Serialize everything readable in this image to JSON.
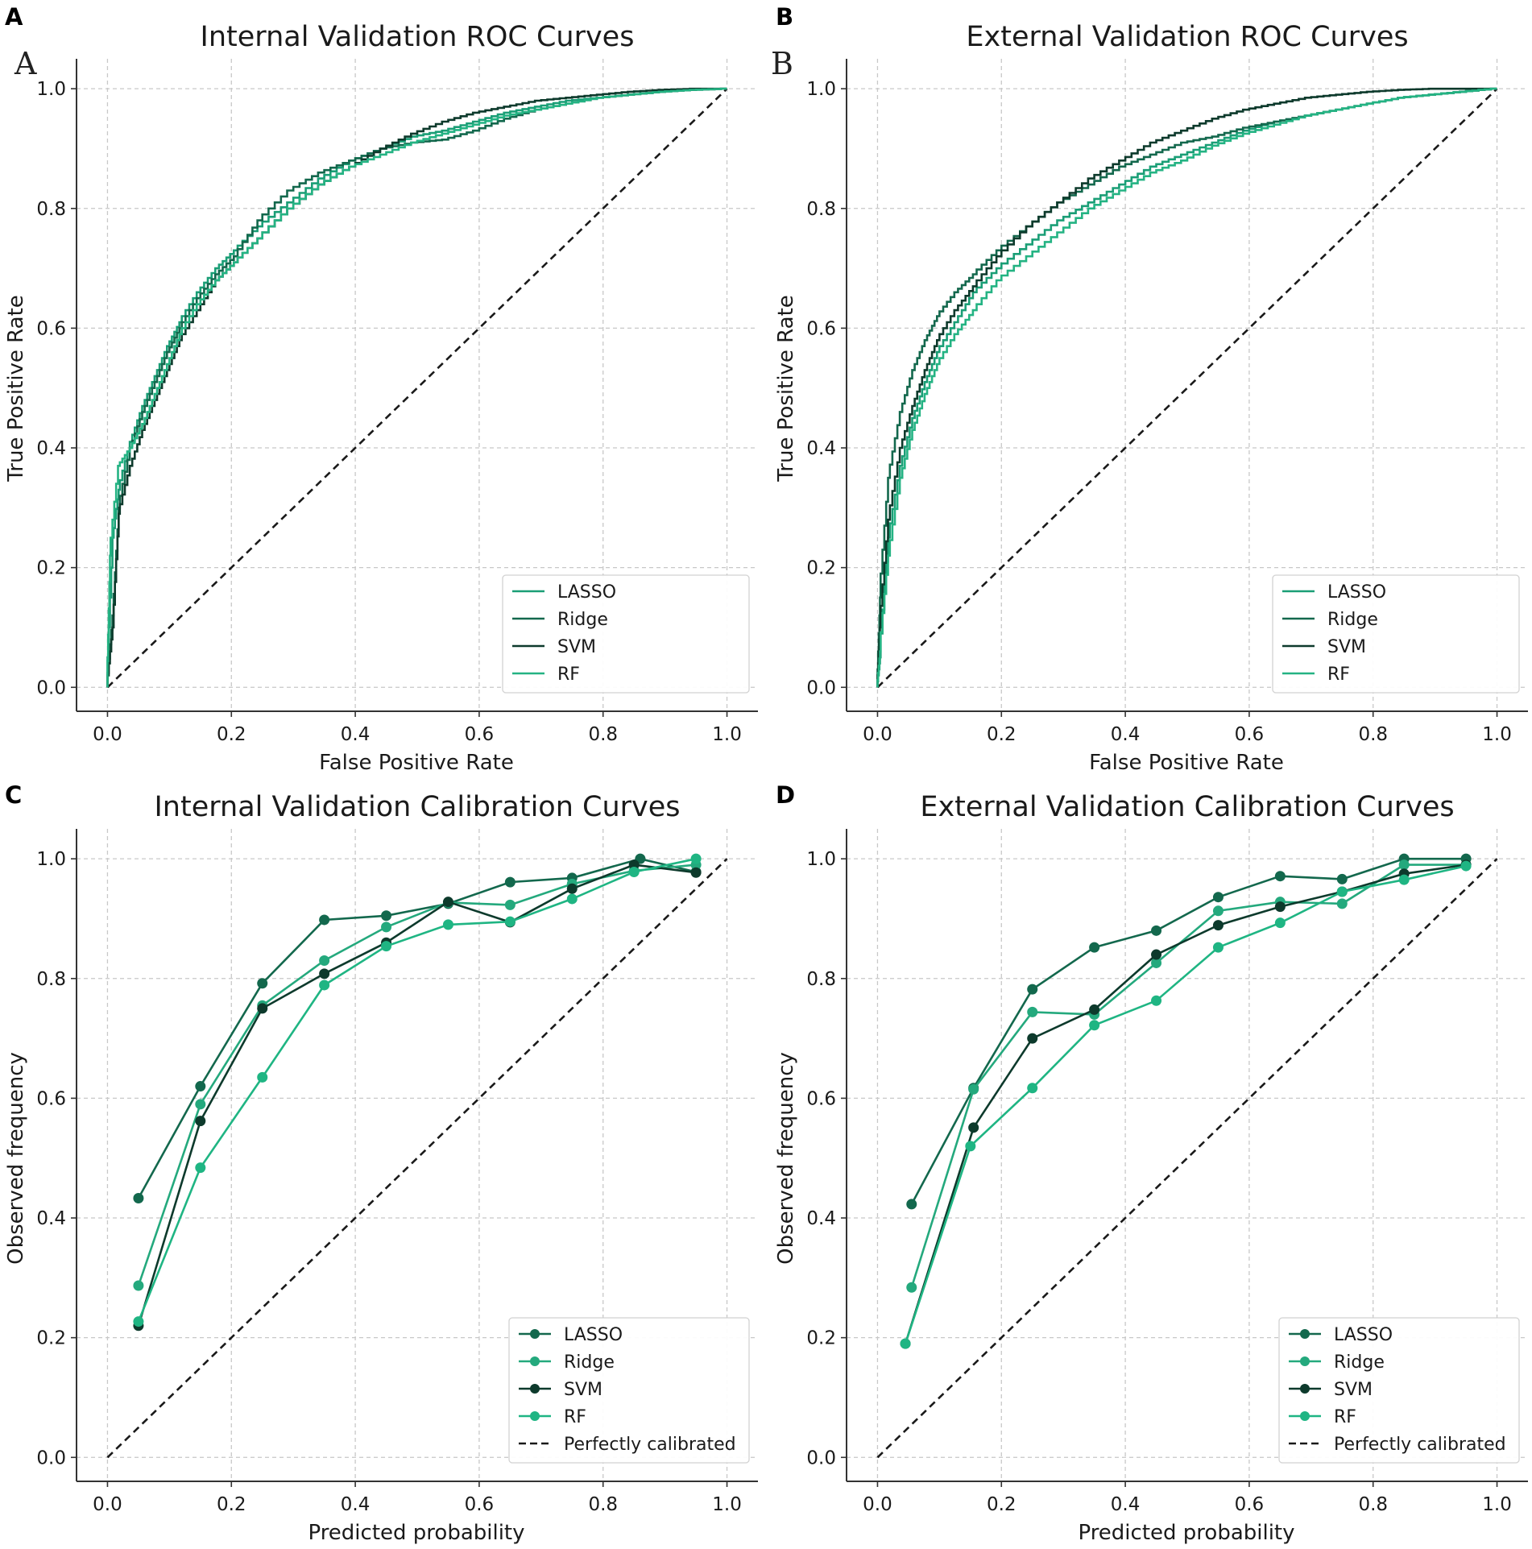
{
  "colors": {
    "LASSO": "#1a9e76",
    "Ridge": "#13684d",
    "SVM": "#0d3a2c",
    "RF": "#24b383",
    "cal_LASSO": "#13684d",
    "cal_Ridge": "#24a97d",
    "cal_SVM": "#0d3a2c",
    "cal_RF": "#1fb583",
    "diagonal": "#1a1a1a"
  },
  "chart_data": [
    {
      "id": "A",
      "panel_label": "A",
      "inset_label": "A",
      "type": "line",
      "kind": "roc",
      "title": "Internal Validation ROC Curves",
      "xlabel": "False Positive Rate",
      "ylabel": "True Positive Rate",
      "xlim": [
        -0.05,
        1.05
      ],
      "ylim": [
        -0.04,
        1.05
      ],
      "xticks": [
        0.0,
        0.2,
        0.4,
        0.6,
        0.8,
        1.0
      ],
      "yticks": [
        0.0,
        0.2,
        0.4,
        0.6,
        0.8,
        1.0
      ],
      "tick_labels": [
        "0.0",
        "0.2",
        "0.4",
        "0.6",
        "0.8",
        "1.0"
      ],
      "grid": true,
      "legend_position": "lower-right",
      "series": [
        {
          "name": "LASSO",
          "color_key": "LASSO",
          "x": [
            0,
            0.01,
            0.02,
            0.04,
            0.06,
            0.08,
            0.1,
            0.12,
            0.15,
            0.18,
            0.21,
            0.25,
            0.3,
            0.35,
            0.4,
            0.45,
            0.5,
            0.55,
            0.6,
            0.65,
            0.7,
            0.75,
            0.8,
            0.85,
            0.9,
            0.95,
            1.0
          ],
          "y": [
            0,
            0.25,
            0.33,
            0.41,
            0.47,
            0.52,
            0.57,
            0.61,
            0.66,
            0.7,
            0.73,
            0.77,
            0.81,
            0.85,
            0.88,
            0.9,
            0.92,
            0.93,
            0.945,
            0.96,
            0.97,
            0.98,
            0.985,
            0.99,
            0.995,
            0.998,
            1.0
          ]
        },
        {
          "name": "Ridge",
          "color_key": "Ridge",
          "x": [
            0,
            0.01,
            0.02,
            0.04,
            0.06,
            0.08,
            0.1,
            0.12,
            0.15,
            0.18,
            0.21,
            0.25,
            0.3,
            0.35,
            0.4,
            0.45,
            0.5,
            0.55,
            0.6,
            0.65,
            0.7,
            0.75,
            0.8,
            0.85,
            0.9,
            0.95,
            1.0
          ],
          "y": [
            0,
            0.12,
            0.3,
            0.4,
            0.46,
            0.51,
            0.56,
            0.6,
            0.65,
            0.69,
            0.72,
            0.78,
            0.83,
            0.86,
            0.88,
            0.9,
            0.91,
            0.915,
            0.93,
            0.95,
            0.965,
            0.975,
            0.985,
            0.99,
            0.995,
            0.998,
            1.0
          ]
        },
        {
          "name": "SVM",
          "color_key": "SVM",
          "x": [
            0,
            0.01,
            0.02,
            0.04,
            0.06,
            0.08,
            0.1,
            0.12,
            0.15,
            0.18,
            0.21,
            0.25,
            0.3,
            0.35,
            0.4,
            0.45,
            0.5,
            0.55,
            0.6,
            0.65,
            0.7,
            0.75,
            0.8,
            0.85,
            0.9,
            0.95,
            1.0
          ],
          "y": [
            0,
            0.1,
            0.29,
            0.37,
            0.43,
            0.48,
            0.53,
            0.58,
            0.63,
            0.68,
            0.71,
            0.75,
            0.8,
            0.84,
            0.87,
            0.9,
            0.925,
            0.945,
            0.96,
            0.97,
            0.98,
            0.985,
            0.99,
            0.995,
            0.998,
            1.0,
            1.0
          ]
        },
        {
          "name": "RF",
          "color_key": "RF",
          "x": [
            0,
            0.005,
            0.02,
            0.04,
            0.06,
            0.08,
            0.1,
            0.12,
            0.15,
            0.18,
            0.21,
            0.25,
            0.3,
            0.35,
            0.4,
            0.45,
            0.5,
            0.55,
            0.6,
            0.65,
            0.7,
            0.75,
            0.8,
            0.85,
            0.9,
            0.95,
            1.0
          ],
          "y": [
            0,
            0.22,
            0.37,
            0.4,
            0.44,
            0.49,
            0.54,
            0.59,
            0.64,
            0.68,
            0.71,
            0.75,
            0.8,
            0.84,
            0.87,
            0.89,
            0.91,
            0.925,
            0.94,
            0.955,
            0.965,
            0.975,
            0.985,
            0.99,
            0.995,
            0.998,
            1.0
          ]
        }
      ],
      "legend": [
        "LASSO",
        "Ridge",
        "SVM",
        "RF"
      ]
    },
    {
      "id": "B",
      "panel_label": "B",
      "inset_label": "B",
      "type": "line",
      "kind": "roc",
      "title": "External Validation ROC Curves",
      "xlabel": "False Positive Rate",
      "ylabel": "True Positive Rate",
      "xlim": [
        -0.05,
        1.05
      ],
      "ylim": [
        -0.04,
        1.05
      ],
      "xticks": [
        0.0,
        0.2,
        0.4,
        0.6,
        0.8,
        1.0
      ],
      "yticks": [
        0.0,
        0.2,
        0.4,
        0.6,
        0.8,
        1.0
      ],
      "tick_labels": [
        "0.0",
        "0.2",
        "0.4",
        "0.6",
        "0.8",
        "1.0"
      ],
      "grid": true,
      "legend_position": "lower-right",
      "series": [
        {
          "name": "LASSO",
          "color_key": "LASSO",
          "x": [
            0,
            0.005,
            0.02,
            0.04,
            0.06,
            0.08,
            0.1,
            0.13,
            0.16,
            0.2,
            0.25,
            0.3,
            0.35,
            0.4,
            0.45,
            0.5,
            0.55,
            0.6,
            0.65,
            0.7,
            0.75,
            0.8,
            0.85,
            0.9,
            0.95,
            1.0
          ],
          "y": [
            0,
            0.05,
            0.25,
            0.37,
            0.45,
            0.51,
            0.56,
            0.61,
            0.66,
            0.7,
            0.74,
            0.78,
            0.81,
            0.84,
            0.87,
            0.89,
            0.91,
            0.93,
            0.945,
            0.955,
            0.965,
            0.975,
            0.985,
            0.99,
            0.995,
            1.0
          ]
        },
        {
          "name": "Ridge",
          "color_key": "Ridge",
          "x": [
            0,
            0.005,
            0.02,
            0.04,
            0.06,
            0.08,
            0.1,
            0.13,
            0.16,
            0.2,
            0.25,
            0.3,
            0.35,
            0.4,
            0.45,
            0.5,
            0.55,
            0.6,
            0.65,
            0.7,
            0.75,
            0.8,
            0.85,
            0.9,
            0.95,
            1.0
          ],
          "y": [
            0,
            0.15,
            0.35,
            0.46,
            0.53,
            0.58,
            0.62,
            0.66,
            0.69,
            0.73,
            0.77,
            0.81,
            0.84,
            0.87,
            0.89,
            0.91,
            0.92,
            0.935,
            0.945,
            0.955,
            0.965,
            0.975,
            0.985,
            0.99,
            0.995,
            1.0
          ]
        },
        {
          "name": "SVM",
          "color_key": "SVM",
          "x": [
            0,
            0.005,
            0.02,
            0.04,
            0.06,
            0.08,
            0.1,
            0.13,
            0.16,
            0.2,
            0.25,
            0.3,
            0.35,
            0.4,
            0.45,
            0.5,
            0.55,
            0.6,
            0.65,
            0.7,
            0.75,
            0.8,
            0.85,
            0.9,
            0.95,
            1.0
          ],
          "y": [
            0,
            0.1,
            0.28,
            0.4,
            0.47,
            0.53,
            0.58,
            0.63,
            0.67,
            0.72,
            0.77,
            0.81,
            0.85,
            0.88,
            0.91,
            0.93,
            0.95,
            0.965,
            0.975,
            0.985,
            0.99,
            0.995,
            0.998,
            1.0,
            1.0,
            1.0
          ]
        },
        {
          "name": "RF",
          "color_key": "RF",
          "x": [
            0,
            0.005,
            0.02,
            0.04,
            0.06,
            0.08,
            0.1,
            0.13,
            0.16,
            0.2,
            0.25,
            0.3,
            0.35,
            0.4,
            0.45,
            0.5,
            0.55,
            0.6,
            0.65,
            0.7,
            0.75,
            0.8,
            0.85,
            0.9,
            0.95,
            1.0
          ],
          "y": [
            0,
            0.06,
            0.22,
            0.35,
            0.43,
            0.49,
            0.54,
            0.59,
            0.63,
            0.68,
            0.72,
            0.76,
            0.8,
            0.83,
            0.86,
            0.88,
            0.905,
            0.925,
            0.94,
            0.955,
            0.965,
            0.975,
            0.985,
            0.99,
            0.995,
            1.0
          ]
        }
      ],
      "legend": [
        "LASSO",
        "Ridge",
        "SVM",
        "RF"
      ]
    },
    {
      "id": "C",
      "panel_label": "C",
      "type": "line",
      "kind": "calibration",
      "title": "Internal Validation Calibration Curves",
      "xlabel": "Predicted probability",
      "ylabel": "Observed frequency",
      "xlim": [
        -0.05,
        1.05
      ],
      "ylim": [
        -0.04,
        1.05
      ],
      "xticks": [
        0.0,
        0.2,
        0.4,
        0.6,
        0.8,
        1.0
      ],
      "yticks": [
        0.0,
        0.2,
        0.4,
        0.6,
        0.8,
        1.0
      ],
      "tick_labels": [
        "0.0",
        "0.2",
        "0.4",
        "0.6",
        "0.8",
        "1.0"
      ],
      "grid": true,
      "legend_position": "lower-right",
      "series": [
        {
          "name": "LASSO",
          "color_key": "cal_LASSO",
          "x": [
            0.05,
            0.15,
            0.25,
            0.35,
            0.45,
            0.55,
            0.65,
            0.75,
            0.86,
            0.95
          ],
          "y": [
            0.433,
            0.62,
            0.792,
            0.898,
            0.905,
            0.925,
            0.961,
            0.968,
            1.0,
            0.978
          ]
        },
        {
          "name": "Ridge",
          "color_key": "cal_Ridge",
          "x": [
            0.05,
            0.15,
            0.25,
            0.35,
            0.45,
            0.55,
            0.65,
            0.75,
            0.85,
            0.95
          ],
          "y": [
            0.287,
            0.59,
            0.755,
            0.83,
            0.886,
            0.927,
            0.923,
            0.958,
            0.98,
            0.99
          ]
        },
        {
          "name": "SVM",
          "color_key": "cal_SVM",
          "x": [
            0.05,
            0.15,
            0.25,
            0.35,
            0.45,
            0.55,
            0.65,
            0.75,
            0.85,
            0.95
          ],
          "y": [
            0.22,
            0.562,
            0.75,
            0.808,
            0.86,
            0.928,
            0.894,
            0.95,
            0.99,
            0.977
          ]
        },
        {
          "name": "RF",
          "color_key": "cal_RF",
          "x": [
            0.05,
            0.15,
            0.25,
            0.35,
            0.45,
            0.55,
            0.65,
            0.75,
            0.85,
            0.95
          ],
          "y": [
            0.227,
            0.484,
            0.635,
            0.789,
            0.854,
            0.89,
            0.895,
            0.933,
            0.978,
            1.0
          ]
        }
      ],
      "diagonal_label": "Perfectly calibrated",
      "legend": [
        "LASSO",
        "Ridge",
        "SVM",
        "RF",
        "Perfectly calibrated"
      ]
    },
    {
      "id": "D",
      "panel_label": "D",
      "type": "line",
      "kind": "calibration",
      "title": "External Validation Calibration Curves",
      "xlabel": "Predicted probability",
      "ylabel": "Observed frequency",
      "xlim": [
        -0.05,
        1.05
      ],
      "ylim": [
        -0.04,
        1.05
      ],
      "xticks": [
        0.0,
        0.2,
        0.4,
        0.6,
        0.8,
        1.0
      ],
      "yticks": [
        0.0,
        0.2,
        0.4,
        0.6,
        0.8,
        1.0
      ],
      "tick_labels": [
        "0.0",
        "0.2",
        "0.4",
        "0.6",
        "0.8",
        "1.0"
      ],
      "grid": true,
      "legend_position": "lower-right",
      "series": [
        {
          "name": "LASSO",
          "color_key": "cal_LASSO",
          "x": [
            0.055,
            0.155,
            0.25,
            0.35,
            0.45,
            0.55,
            0.65,
            0.75,
            0.85,
            0.95
          ],
          "y": [
            0.423,
            0.617,
            0.782,
            0.852,
            0.88,
            0.936,
            0.971,
            0.966,
            1.0,
            1.0
          ]
        },
        {
          "name": "Ridge",
          "color_key": "cal_Ridge",
          "x": [
            0.055,
            0.155,
            0.25,
            0.35,
            0.45,
            0.55,
            0.65,
            0.75,
            0.85,
            0.95
          ],
          "y": [
            0.284,
            0.615,
            0.744,
            0.74,
            0.826,
            0.913,
            0.928,
            0.925,
            0.99,
            0.99
          ]
        },
        {
          "name": "SVM",
          "color_key": "cal_SVM",
          "x": [
            0.045,
            0.155,
            0.25,
            0.35,
            0.45,
            0.55,
            0.65,
            0.75,
            0.85,
            0.95
          ],
          "y": [
            0.19,
            0.551,
            0.7,
            0.748,
            0.84,
            0.889,
            0.92,
            0.945,
            0.975,
            0.99
          ]
        },
        {
          "name": "RF",
          "color_key": "cal_RF",
          "x": [
            0.045,
            0.15,
            0.25,
            0.35,
            0.45,
            0.55,
            0.65,
            0.75,
            0.85,
            0.95
          ],
          "y": [
            0.19,
            0.52,
            0.617,
            0.722,
            0.763,
            0.852,
            0.893,
            0.945,
            0.965,
            0.988
          ]
        }
      ],
      "diagonal_label": "Perfectly calibrated",
      "legend": [
        "LASSO",
        "Ridge",
        "SVM",
        "RF",
        "Perfectly calibrated"
      ]
    }
  ]
}
